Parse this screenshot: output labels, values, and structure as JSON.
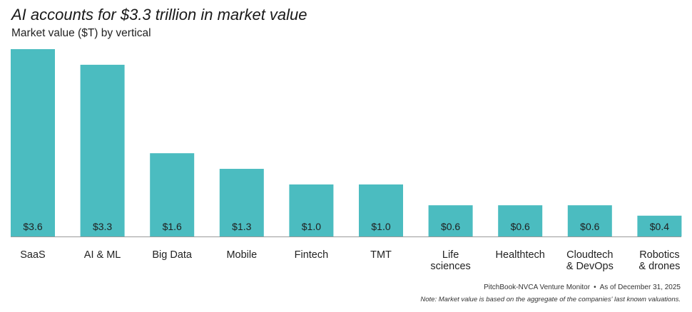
{
  "header": {
    "title": "AI accounts for $3.3 trillion in market value",
    "subtitle": "Market value ($T) by vertical"
  },
  "footer": {
    "source": "PitchBook-NVCA Venture Monitor",
    "date": "As of December 31, 2025",
    "note": "Note: Market value is based on the aggregate of the companies' last known valuations."
  },
  "colors": {
    "bar": "#4bbcc0",
    "axis": "#9a9a9a",
    "text": "#222222"
  },
  "chart_data": {
    "type": "bar",
    "title": "AI accounts for $3.3 trillion in market value",
    "subtitle": "Market value ($T) by vertical",
    "xlabel": "",
    "ylabel": "Market value ($T)",
    "ylim": [
      0,
      3.6
    ],
    "grid": false,
    "categories": [
      [
        "SaaS"
      ],
      [
        "AI & ML"
      ],
      [
        "Big Data"
      ],
      [
        "Mobile"
      ],
      [
        "Fintech"
      ],
      [
        "TMT"
      ],
      [
        "Life",
        "sciences"
      ],
      [
        "Healthtech"
      ],
      [
        "Cloudtech",
        "& DevOps"
      ],
      [
        "Robotics",
        "& drones"
      ]
    ],
    "values": [
      3.6,
      3.3,
      1.6,
      1.3,
      1.0,
      1.0,
      0.6,
      0.6,
      0.6,
      0.4
    ],
    "labels": [
      "$3.6",
      "$3.3",
      "$1.6",
      "$1.3",
      "$1.0",
      "$1.0",
      "$0.6",
      "$0.6",
      "$0.6",
      "$0.4"
    ]
  }
}
